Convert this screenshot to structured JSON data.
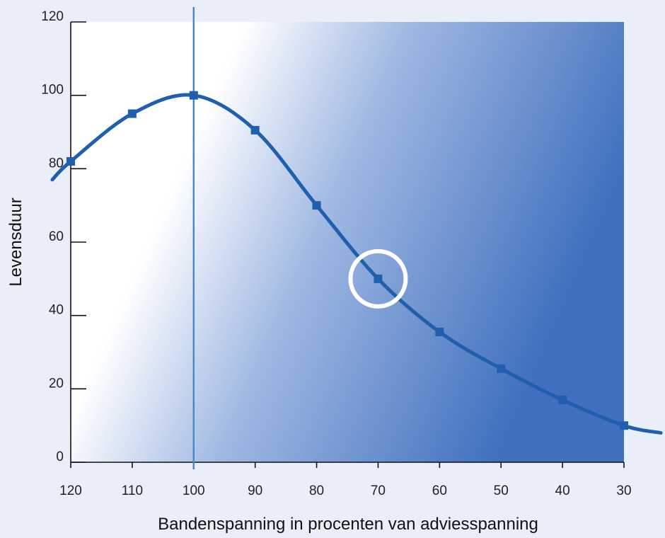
{
  "chart_data": {
    "type": "line",
    "title": "",
    "xlabel": "Bandenspanning in procenten van adviesspanning",
    "ylabel": "Levensduur",
    "x_ticks": [
      120,
      110,
      100,
      90,
      80,
      70,
      60,
      50,
      40,
      30
    ],
    "y_ticks": [
      0,
      20,
      40,
      60,
      80,
      100,
      120
    ],
    "xlim": [
      120,
      30
    ],
    "ylim": [
      0,
      120
    ],
    "x_reversed": true,
    "grid": false,
    "reference_line_x": 100,
    "highlight_point": {
      "x": 70,
      "y": 50
    },
    "series": [
      {
        "x": [
          120,
          110,
          100,
          90,
          80,
          70,
          60,
          50,
          40,
          30
        ],
        "y": [
          82,
          95,
          100,
          90.5,
          70,
          50,
          35.5,
          25.5,
          17,
          10
        ]
      }
    ],
    "curve_extension": {
      "x_start": 123,
      "y_start": 77,
      "x_end": 24,
      "y_end": 8
    },
    "colors": {
      "line": "#1f5fae",
      "reference_line": "#4a86cc",
      "highlight": "#ffffff",
      "gradient_light": "#ffffff",
      "gradient_dark": "#3f6fbd"
    }
  }
}
